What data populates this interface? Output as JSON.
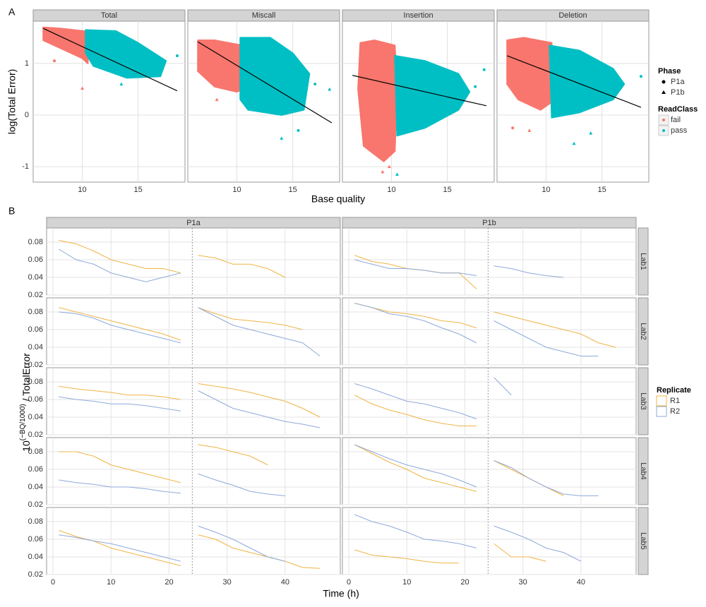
{
  "chart_data": [
    {
      "type": "scatter",
      "panel_label": "A",
      "xlabel": "Base quality",
      "ylabel": "log(Total Error)",
      "xlim": [
        5.6,
        19.2
      ],
      "ylim": [
        -1.3,
        1.82
      ],
      "xticks": [
        10,
        15
      ],
      "yticks": [
        -1,
        0,
        1
      ],
      "grid": true,
      "shape_legend": {
        "title": "Phase",
        "items": [
          {
            "name": "P1a",
            "shape": "circle"
          },
          {
            "name": "P1b",
            "shape": "triangle"
          }
        ]
      },
      "color_legend": {
        "title": "ReadClass",
        "items": [
          {
            "name": "fail",
            "color": "#F8766D"
          },
          {
            "name": "pass",
            "color": "#00BFC4"
          }
        ]
      },
      "facets": [
        {
          "title": "Total",
          "hulls": [
            {
              "x": [
                6.5,
                8,
                10.5,
                10.5,
                10,
                8,
                6.5
              ],
              "y": [
                1.7,
                1.68,
                1.62,
                1.0,
                1.1,
                1.3,
                1.45
              ]
            },
            {
              "x": [
                10.3,
                13,
                15,
                17.5,
                17,
                14,
                11,
                10.3
              ],
              "y": [
                1.65,
                1.63,
                1.4,
                1.05,
                0.75,
                0.72,
                0.95,
                1.2
              ]
            }
          ],
          "outliers": [
            {
              "class": 0,
              "phase": 1,
              "x": 10,
              "y": 0.52
            },
            {
              "class": 0,
              "phase": 0,
              "x": 7.5,
              "y": 1.05
            },
            {
              "class": 1,
              "phase": 0,
              "x": 18.5,
              "y": 1.15
            },
            {
              "class": 1,
              "phase": 1,
              "x": 17,
              "y": 0.85
            },
            {
              "class": 1,
              "phase": 1,
              "x": 13.5,
              "y": 0.6
            }
          ],
          "fit": {
            "x": [
              6.5,
              18.5
            ],
            "y": [
              1.68,
              0.47
            ]
          }
        },
        {
          "title": "Miscall",
          "hulls": [
            {
              "x": [
                6.5,
                8,
                10.5,
                10.5,
                10,
                8,
                6.5
              ],
              "y": [
                1.45,
                1.45,
                1.35,
                0.5,
                0.45,
                0.55,
                0.85
              ]
            },
            {
              "x": [
                10.3,
                13,
                15,
                16.5,
                16,
                14,
                11,
                10.3
              ],
              "y": [
                1.5,
                1.5,
                1.2,
                0.8,
                0.1,
                0,
                0.1,
                0.3
              ]
            }
          ],
          "outliers": [
            {
              "class": 0,
              "phase": 1,
              "x": 8.2,
              "y": 0.3
            },
            {
              "class": 1,
              "phase": 1,
              "x": 14,
              "y": -0.45
            },
            {
              "class": 1,
              "phase": 0,
              "x": 17,
              "y": 0.6
            },
            {
              "class": 1,
              "phase": 0,
              "x": 15.5,
              "y": -0.3
            },
            {
              "class": 1,
              "phase": 1,
              "x": 18.3,
              "y": 0.5
            }
          ],
          "fit": {
            "x": [
              6.5,
              18.5
            ],
            "y": [
              1.42,
              -0.15
            ]
          }
        },
        {
          "title": "Insertion",
          "hulls": [
            {
              "x": [
                7.2,
                8.5,
                10.3,
                10.5,
                10.3,
                9.3,
                7.5,
                7
              ],
              "y": [
                1.4,
                1.45,
                1.35,
                0.5,
                -0.7,
                -0.9,
                -0.6,
                0.5
              ]
            },
            {
              "x": [
                10.3,
                13,
                16,
                17,
                16,
                13,
                10.5
              ],
              "y": [
                1.15,
                1.05,
                0.8,
                0.45,
                0.1,
                -0.25,
                -0.4
              ]
            }
          ],
          "outliers": [
            {
              "class": 0,
              "phase": 1,
              "x": 9.2,
              "y": -1.1
            },
            {
              "class": 0,
              "phase": 1,
              "x": 9.8,
              "y": -1.0
            },
            {
              "class": 1,
              "phase": 1,
              "x": 10.5,
              "y": -1.15
            },
            {
              "class": 1,
              "phase": 0,
              "x": 18.3,
              "y": 0.88
            },
            {
              "class": 1,
              "phase": 0,
              "x": 17.5,
              "y": 0.55
            }
          ],
          "fit": {
            "x": [
              6.5,
              18.5
            ],
            "y": [
              0.77,
              0.18
            ]
          }
        },
        {
          "title": "Deletion",
          "hulls": [
            {
              "x": [
                6.5,
                8,
                10.5,
                10.5,
                9.5,
                7.5,
                6.5
              ],
              "y": [
                1.45,
                1.5,
                1.4,
                0.25,
                0.1,
                0.3,
                0.6
              ]
            },
            {
              "x": [
                10.3,
                13,
                16,
                17,
                16,
                13,
                10.5
              ],
              "y": [
                1.35,
                1.25,
                0.9,
                0.6,
                0.3,
                0.05,
                -0.05
              ]
            }
          ],
          "outliers": [
            {
              "class": 0,
              "phase": 0,
              "x": 7,
              "y": -0.25
            },
            {
              "class": 0,
              "phase": 1,
              "x": 8.5,
              "y": -0.3
            },
            {
              "class": 1,
              "phase": 1,
              "x": 12.5,
              "y": -0.55
            },
            {
              "class": 1,
              "phase": 1,
              "x": 14,
              "y": -0.35
            },
            {
              "class": 1,
              "phase": 0,
              "x": 18.5,
              "y": 0.75
            },
            {
              "class": 1,
              "phase": 1,
              "x": 16,
              "y": 0.8
            }
          ],
          "fit": {
            "x": [
              6.5,
              18.5
            ],
            "y": [
              1.15,
              0.15
            ]
          }
        }
      ]
    },
    {
      "type": "line",
      "panel_label": "B",
      "xlabel": "Time (h)",
      "ylabel": {
        "base": "10",
        "sup": "(−BQ/1000)",
        "rest": " / TotalError"
      },
      "xlim": [
        -1.1,
        49.5
      ],
      "ylim": [
        0.02,
        0.096
      ],
      "xticks": [
        0,
        10,
        20,
        30,
        40
      ],
      "yticks": [
        0.02,
        0.04,
        0.06,
        0.08
      ],
      "grid": true,
      "divider": 24,
      "columns": [
        "P1a",
        "P1b"
      ],
      "rows": [
        "Lab1",
        "Lab2",
        "Lab3",
        "Lab4",
        "Lab5"
      ],
      "legend_title": "Replicate",
      "series": [
        {
          "name": "R1",
          "color": "#F0B445"
        },
        {
          "name": "R2",
          "color": "#8FA9DB"
        }
      ],
      "x": [
        1,
        4,
        7,
        10,
        13,
        16,
        19,
        22,
        24,
        25,
        28,
        31,
        34,
        37,
        40,
        43,
        46
      ],
      "panels": [
        {
          "values": [
            [
              0.082,
              0.078,
              0.07,
              0.06,
              0.055,
              0.05,
              0.05,
              0.045,
              null,
              0.065,
              0.062,
              0.055,
              0.055,
              0.05,
              0.04,
              null,
              null
            ],
            [
              0.072,
              0.06,
              0.055,
              0.045,
              0.04,
              0.035,
              0.04,
              0.045,
              null,
              null,
              null,
              null,
              null,
              null,
              null,
              null,
              null
            ]
          ]
        },
        {
          "values": [
            [
              0.065,
              0.058,
              0.055,
              0.05,
              0.048,
              0.045,
              0.045,
              0.027,
              null,
              null,
              null,
              null,
              null,
              null,
              null,
              null,
              null
            ],
            [
              0.06,
              0.055,
              0.05,
              0.05,
              0.048,
              0.045,
              0.045,
              0.042,
              null,
              0.053,
              0.05,
              0.045,
              0.042,
              0.04,
              null,
              null,
              null
            ]
          ]
        },
        {
          "values": [
            [
              0.085,
              0.08,
              0.075,
              0.07,
              0.065,
              0.06,
              0.055,
              0.048,
              null,
              0.085,
              0.078,
              0.072,
              0.07,
              0.068,
              0.065,
              0.06,
              null
            ],
            [
              0.08,
              0.078,
              0.073,
              0.065,
              0.06,
              0.055,
              0.05,
              0.045,
              null,
              0.085,
              0.075,
              0.065,
              0.06,
              0.055,
              0.05,
              0.045,
              0.03
            ]
          ]
        },
        {
          "values": [
            [
              0.09,
              0.085,
              0.08,
              0.078,
              0.075,
              0.07,
              0.068,
              0.062,
              null,
              0.08,
              0.075,
              0.07,
              0.065,
              0.06,
              0.055,
              0.045,
              0.04
            ],
            [
              0.09,
              0.085,
              0.078,
              0.075,
              0.07,
              0.062,
              0.055,
              0.045,
              null,
              0.07,
              0.06,
              0.05,
              0.04,
              0.035,
              0.03,
              0.03,
              null
            ]
          ]
        },
        {
          "values": [
            [
              0.075,
              0.072,
              0.07,
              0.068,
              0.065,
              0.065,
              0.063,
              0.06,
              null,
              0.078,
              0.075,
              0.072,
              0.068,
              0.063,
              0.058,
              0.05,
              0.04
            ],
            [
              0.063,
              0.06,
              0.058,
              0.055,
              0.055,
              0.053,
              0.05,
              0.047,
              null,
              0.07,
              0.06,
              0.05,
              0.045,
              0.04,
              0.035,
              0.032,
              0.028
            ]
          ]
        },
        {
          "values": [
            [
              0.065,
              0.055,
              0.048,
              0.043,
              0.037,
              0.033,
              0.03,
              0.03,
              null,
              null,
              null,
              null,
              null,
              null,
              null,
              null,
              null
            ],
            [
              0.078,
              0.072,
              0.065,
              0.058,
              0.055,
              0.05,
              0.045,
              0.038,
              null,
              0.085,
              0.065,
              null,
              null,
              null,
              null,
              null,
              null
            ]
          ]
        },
        {
          "values": [
            [
              0.08,
              0.08,
              0.075,
              0.065,
              0.06,
              0.055,
              0.05,
              0.045,
              null,
              0.088,
              0.085,
              0.08,
              0.075,
              0.065,
              null,
              null,
              null
            ],
            [
              0.048,
              0.045,
              0.043,
              0.04,
              0.04,
              0.038,
              0.035,
              0.033,
              null,
              0.055,
              0.048,
              0.042,
              0.035,
              0.032,
              0.03,
              null,
              null
            ]
          ]
        },
        {
          "values": [
            [
              0.088,
              0.078,
              0.068,
              0.06,
              0.05,
              0.045,
              0.04,
              0.035,
              null,
              0.07,
              0.06,
              0.05,
              0.04,
              0.03,
              null,
              null,
              null
            ],
            [
              0.088,
              0.08,
              0.072,
              0.065,
              0.06,
              0.055,
              0.048,
              0.04,
              null,
              0.07,
              0.062,
              0.05,
              0.04,
              0.032,
              0.03,
              0.03,
              null
            ]
          ]
        },
        {
          "values": [
            [
              0.07,
              0.063,
              0.058,
              0.05,
              0.045,
              0.04,
              0.035,
              0.03,
              null,
              0.065,
              0.06,
              0.05,
              0.045,
              0.04,
              0.035,
              0.028,
              0.027
            ],
            [
              0.065,
              0.062,
              0.058,
              0.055,
              0.05,
              0.045,
              0.04,
              0.035,
              null,
              0.075,
              0.068,
              0.06,
              0.05,
              0.04,
              0.035,
              null,
              null
            ]
          ]
        },
        {
          "values": [
            [
              0.048,
              0.042,
              0.04,
              0.038,
              0.035,
              0.033,
              0.033,
              null,
              null,
              0.055,
              0.04,
              0.04,
              0.035,
              null,
              null,
              null,
              null
            ],
            [
              0.088,
              0.08,
              0.075,
              0.068,
              0.06,
              0.058,
              0.055,
              0.05,
              null,
              0.075,
              0.068,
              0.06,
              0.05,
              0.045,
              0.035,
              null,
              null
            ]
          ]
        }
      ]
    }
  ]
}
